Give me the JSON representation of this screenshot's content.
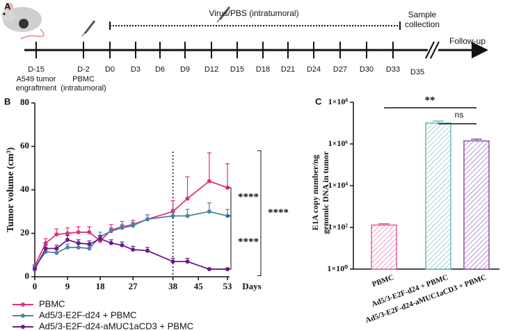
{
  "timeline": {
    "panel_label": "A",
    "virus_label": "Virus/PBS (intratumoral)",
    "sample_label": [
      "Sample",
      "collection"
    ],
    "followup_label": "Follow-up",
    "timepoints": [
      "D-15",
      "D-2",
      "D0",
      "D3",
      "D6",
      "D9",
      "D12",
      "D15",
      "D18",
      "D21",
      "D24",
      "D27",
      "D30",
      "D33",
      "D35"
    ],
    "notes": [
      [
        "A549 tumor",
        "engraftment"
      ],
      [
        "PBMC",
        "(intratumoral)"
      ]
    ]
  },
  "chart_data": [
    {
      "type": "line",
      "panel_label": "B",
      "ylabel": "Tumor volume (cm³)",
      "xlabel": "Days",
      "x": [
        0,
        3,
        6,
        9,
        12,
        15,
        18,
        21,
        24,
        27,
        31,
        38,
        42,
        48,
        53
      ],
      "xlim": [
        0,
        53
      ],
      "xticks": [
        0,
        9,
        18,
        27,
        38,
        45,
        53
      ],
      "ylim": [
        0,
        80
      ],
      "yticks": [
        0,
        20,
        40,
        60,
        80
      ],
      "vline": 38,
      "series": [
        {
          "name": "PBMC",
          "color": "#e0307a",
          "values": [
            5,
            15.5,
            19.5,
            20,
            20.5,
            20.5,
            16.5,
            21.5,
            23,
            24,
            26.5,
            30,
            36,
            44,
            41
          ],
          "errors": [
            0.5,
            2,
            2.5,
            2.5,
            2.5,
            2.5,
            2,
            2.5,
            2.5,
            2,
            2,
            5,
            10,
            13,
            11
          ]
        },
        {
          "name": "Ad5/3-E2F-d24 + PBMC",
          "color": "#4f82a3",
          "values": [
            4.5,
            11.5,
            11,
            13.5,
            13.5,
            13,
            18.5,
            21,
            22.5,
            23.5,
            26.5,
            28,
            28,
            30,
            28
          ],
          "errors": [
            0.5,
            1.5,
            1.5,
            1.5,
            1.5,
            1.5,
            2,
            1.5,
            1.5,
            1.5,
            2,
            3,
            3,
            4,
            3
          ]
        },
        {
          "name": "Ad5/3-E2F-d24-aMUC1aCD3 + PBMC",
          "color": "#6a1b8a",
          "values": [
            3.5,
            13,
            13,
            17,
            15.5,
            15,
            17.5,
            15.5,
            14.5,
            12.5,
            12,
            7,
            7,
            3.5,
            3.5
          ],
          "errors": [
            0.5,
            1.5,
            1.5,
            2,
            1.5,
            1.5,
            1.5,
            1.5,
            1.5,
            1.5,
            1.5,
            1.5,
            1.5,
            0.5,
            0.5
          ]
        }
      ],
      "significance": [
        "****",
        "****",
        "****"
      ]
    },
    {
      "type": "bar",
      "panel_label": "C",
      "log_scale": true,
      "ylabel": [
        "E1A copy number/ng",
        "genomic DNA in tumor"
      ],
      "categories": [
        "PBMC",
        "Ad5/3-E2F-d24 + PBMC",
        "Ad5/3-E2F-d24-aMUC1aCD3 + PBMC"
      ],
      "values": [
        130,
        10000000,
        1400000
      ],
      "errors": [
        20,
        2500000,
        300000
      ],
      "colors": [
        "#e8609a",
        "#6fb8b8",
        "#8a4fb0"
      ],
      "ylim": [
        1,
        100000000
      ],
      "yticks": [
        {
          "value": 1,
          "label": "1×10⁰"
        },
        {
          "value": 100,
          "label": "1×10²"
        },
        {
          "value": 10000,
          "label": "1×10⁴"
        },
        {
          "value": 1000000,
          "label": "1×10⁶"
        },
        {
          "value": 100000000,
          "label": "1×10⁸"
        }
      ],
      "significance": [
        "**",
        "ns"
      ]
    }
  ]
}
